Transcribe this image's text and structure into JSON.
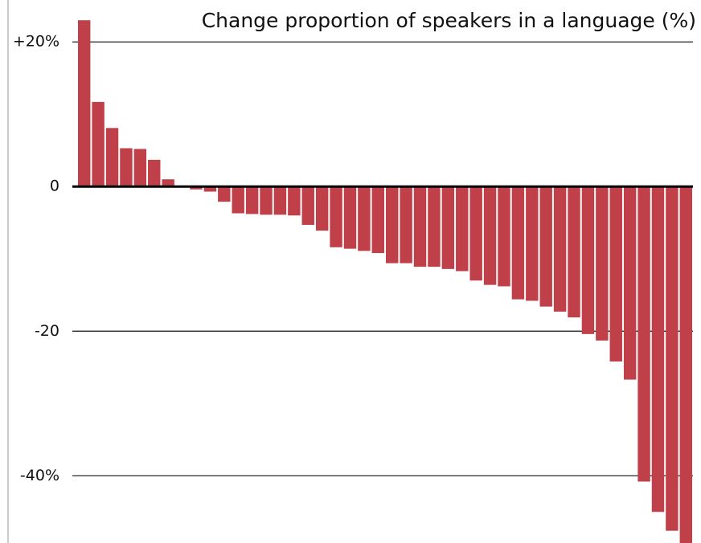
{
  "chart_data": {
    "type": "bar",
    "title": "Change proportion of speakers in a language (%)",
    "values": [
      23.0,
      11.7,
      8.1,
      5.3,
      5.2,
      3.7,
      1.0,
      0,
      -0.4,
      -0.7,
      -2.1,
      -3.7,
      -3.8,
      -3.9,
      -3.9,
      -4.0,
      -5.3,
      -6.1,
      -8.4,
      -8.6,
      -8.9,
      -9.2,
      -10.6,
      -10.6,
      -11.1,
      -11.1,
      -11.4,
      -11.7,
      -13.0,
      -13.6,
      -13.8,
      -15.6,
      -15.8,
      -16.6,
      -17.3,
      -18.1,
      -20.4,
      -21.3,
      -24.2,
      -26.7,
      -40.8,
      -45.0,
      -47.6,
      -49.3
    ],
    "color": "#c0404a",
    "ylim": [
      -49.3,
      25.8
    ],
    "yticks": [
      {
        "value": 20,
        "label": "+20%"
      },
      0,
      -20,
      {
        "value": -40,
        "label": "-40%"
      }
    ],
    "grid": true
  }
}
